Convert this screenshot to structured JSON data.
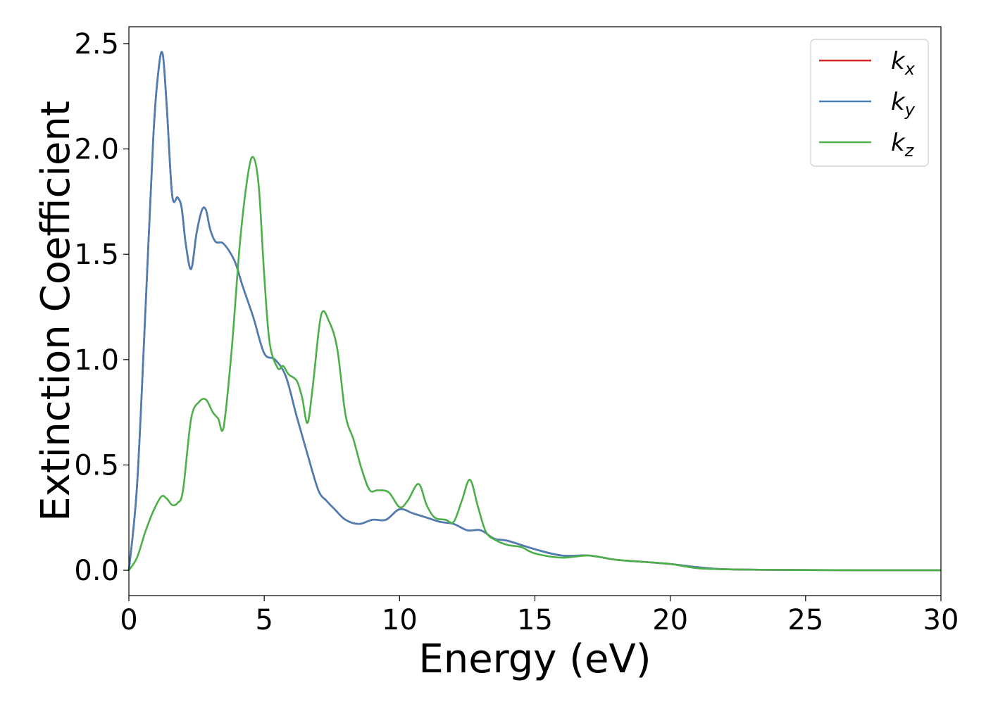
{
  "chart_data": {
    "type": "line",
    "xlabel": "Energy (eV)",
    "ylabel": "Extinction Coefficient",
    "xlim": [
      0,
      30
    ],
    "ylim": [
      -0.12,
      2.58
    ],
    "xticks": [
      0,
      5,
      10,
      15,
      20,
      25,
      30
    ],
    "xtick_labels": [
      "0",
      "5",
      "10",
      "15",
      "20",
      "25",
      "30"
    ],
    "yticks": [
      0.0,
      0.5,
      1.0,
      1.5,
      2.0,
      2.5
    ],
    "ytick_labels": [
      "0.0",
      "0.5",
      "1.0",
      "1.5",
      "2.0",
      "2.5"
    ],
    "grid": false,
    "legend_position": "top-right",
    "series": [
      {
        "name": "k",
        "subscript": "x",
        "color": "#d62728",
        "x": [
          0,
          0.3,
          0.6,
          0.9,
          1.1,
          1.25,
          1.4,
          1.6,
          1.8,
          1.95,
          2.1,
          2.3,
          2.5,
          2.7,
          2.85,
          3.0,
          3.2,
          3.5,
          3.9,
          4.2,
          4.6,
          5.0,
          5.4,
          5.8,
          6.2,
          6.6,
          7.0,
          7.3,
          7.6,
          8.0,
          8.5,
          9.0,
          9.5,
          10.0,
          10.5,
          11.0,
          11.5,
          12.0,
          12.5,
          13.0,
          13.5,
          14.0,
          15.0,
          16.0,
          17.0,
          18.0,
          19.0,
          20.0,
          21.0,
          22.0,
          24.0,
          26.0,
          28.0,
          30.0
        ],
        "values": [
          0,
          0.4,
          1.2,
          2.05,
          2.38,
          2.45,
          2.2,
          1.78,
          1.77,
          1.72,
          1.55,
          1.43,
          1.6,
          1.71,
          1.71,
          1.62,
          1.56,
          1.55,
          1.47,
          1.35,
          1.2,
          1.03,
          1.0,
          0.92,
          0.73,
          0.55,
          0.38,
          0.33,
          0.29,
          0.24,
          0.22,
          0.24,
          0.24,
          0.29,
          0.27,
          0.25,
          0.23,
          0.22,
          0.19,
          0.19,
          0.15,
          0.14,
          0.1,
          0.07,
          0.07,
          0.05,
          0.04,
          0.03,
          0.015,
          0.005,
          0.002,
          0.001,
          0.0,
          0.0
        ]
      },
      {
        "name": "k",
        "subscript": "y",
        "color": "#4a7fb5",
        "x": [
          0,
          0.3,
          0.6,
          0.9,
          1.1,
          1.25,
          1.4,
          1.6,
          1.8,
          1.95,
          2.1,
          2.3,
          2.5,
          2.7,
          2.85,
          3.0,
          3.2,
          3.5,
          3.9,
          4.2,
          4.6,
          5.0,
          5.4,
          5.8,
          6.2,
          6.6,
          7.0,
          7.3,
          7.6,
          8.0,
          8.5,
          9.0,
          9.5,
          10.0,
          10.5,
          11.0,
          11.5,
          12.0,
          12.5,
          13.0,
          13.5,
          14.0,
          15.0,
          16.0,
          17.0,
          18.0,
          19.0,
          20.0,
          21.0,
          22.0,
          24.0,
          26.0,
          28.0,
          30.0
        ],
        "values": [
          0,
          0.4,
          1.2,
          2.05,
          2.38,
          2.45,
          2.2,
          1.78,
          1.77,
          1.72,
          1.55,
          1.43,
          1.6,
          1.71,
          1.71,
          1.62,
          1.56,
          1.55,
          1.47,
          1.35,
          1.2,
          1.03,
          1.0,
          0.92,
          0.73,
          0.55,
          0.38,
          0.33,
          0.29,
          0.24,
          0.22,
          0.24,
          0.24,
          0.29,
          0.27,
          0.25,
          0.23,
          0.22,
          0.19,
          0.19,
          0.15,
          0.14,
          0.1,
          0.07,
          0.07,
          0.05,
          0.04,
          0.03,
          0.015,
          0.005,
          0.002,
          0.001,
          0.0,
          0.0
        ]
      },
      {
        "name": "k",
        "subscript": "z",
        "color": "#4daf4a",
        "x": [
          0,
          0.3,
          0.6,
          0.9,
          1.2,
          1.4,
          1.6,
          1.8,
          2.0,
          2.3,
          2.6,
          2.85,
          3.1,
          3.3,
          3.5,
          3.8,
          4.1,
          4.4,
          4.6,
          4.8,
          5.0,
          5.2,
          5.5,
          5.7,
          5.9,
          6.2,
          6.4,
          6.6,
          6.8,
          7.1,
          7.4,
          7.7,
          8.0,
          8.3,
          8.6,
          8.9,
          9.2,
          9.6,
          10.0,
          10.3,
          10.7,
          11.0,
          11.3,
          11.7,
          12.0,
          12.3,
          12.6,
          12.9,
          13.2,
          13.6,
          14.0,
          14.5,
          15.0,
          16.0,
          17.0,
          18.0,
          19.0,
          20.0,
          21.0,
          22.0,
          24.0,
          26.0,
          28.0,
          30.0
        ],
        "values": [
          0,
          0.06,
          0.18,
          0.28,
          0.35,
          0.34,
          0.31,
          0.32,
          0.38,
          0.72,
          0.8,
          0.81,
          0.75,
          0.72,
          0.68,
          1.05,
          1.55,
          1.88,
          1.96,
          1.82,
          1.4,
          1.08,
          0.96,
          0.97,
          0.93,
          0.9,
          0.82,
          0.7,
          0.88,
          1.21,
          1.18,
          1.05,
          0.74,
          0.62,
          0.48,
          0.38,
          0.38,
          0.37,
          0.3,
          0.33,
          0.41,
          0.31,
          0.25,
          0.24,
          0.23,
          0.33,
          0.43,
          0.3,
          0.18,
          0.14,
          0.12,
          0.11,
          0.08,
          0.06,
          0.07,
          0.05,
          0.04,
          0.03,
          0.01,
          0.005,
          0.002,
          0.001,
          0.0,
          0.0
        ]
      }
    ]
  }
}
